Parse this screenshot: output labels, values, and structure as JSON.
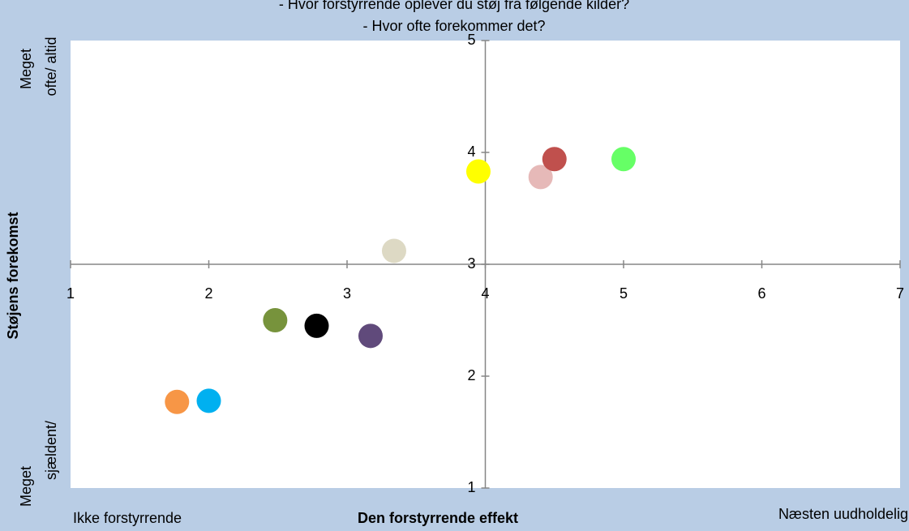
{
  "chart_data": {
    "type": "scatter",
    "title": [
      "- Hvor forstyrrende oplever du støj fra følgende kilder?",
      "- Hvor ofte forekommer det?"
    ],
    "xlabel": "Den forstyrrende effekt",
    "ylabel": "Støjens forekomst",
    "x_left_label": "Ikke forstyrrende",
    "x_right_label": "Næsten uudholdelig",
    "y_top_label": [
      "Meget",
      "ofte/ altid"
    ],
    "y_bottom_label": [
      "Meget",
      "sjældent/"
    ],
    "x": [
      1.77,
      2.0,
      2.48,
      2.78,
      3.17,
      3.34,
      3.95,
      4.4,
      4.5,
      5.0
    ],
    "values": [
      1.77,
      1.78,
      2.5,
      2.45,
      2.36,
      3.12,
      3.83,
      3.78,
      3.94,
      3.94
    ],
    "colors": [
      "#f79646",
      "#00b0f0",
      "#77933c",
      "#000000",
      "#604a7b",
      "#ddd9c4",
      "#ffff00",
      "#e6b9b8",
      "#c0504d",
      "#66ff66"
    ],
    "xlim": [
      1,
      7
    ],
    "xticks": [
      1,
      2,
      3,
      4,
      5,
      6,
      7
    ],
    "ylim": [
      1,
      5
    ],
    "yticks": [
      1,
      2,
      3,
      4,
      5
    ],
    "x_axis_crosses": 3,
    "y_axis_crosses": 4
  }
}
